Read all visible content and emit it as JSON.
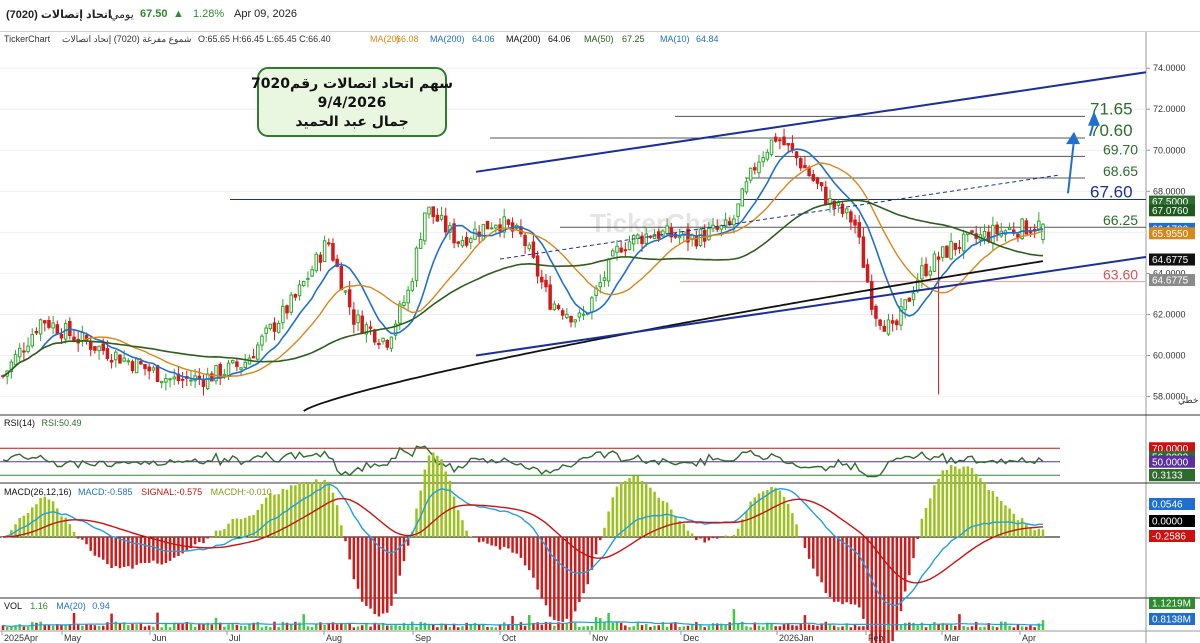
{
  "header": {
    "stock": "اتحاد إتصالات (7020)",
    "period": "يومي",
    "last": "67.50",
    "up_arrow": "▲",
    "change": "1.28%",
    "date": "Apr 09, 2026"
  },
  "legend_line": {
    "brand": "TickerChart",
    "name": "شموع مفرغة (7020) إتحاد اتصالات",
    "ohlc": "O:65.65  H:66.45  L:65.45  C:66.40",
    "ma20_label": "MA(20)",
    "ma20_val": "66.08",
    "ma200a_label": "MA(200)",
    "ma200a_val": "64.06",
    "ma200b_label": "MA(200)",
    "ma200b_val": "64.06",
    "ma50_label": "MA(50)",
    "ma50_val": "67.25",
    "ma10_label": "MA(10)",
    "ma10_val": "64.84"
  },
  "annotation_box": {
    "line1": "سهم اتحاد اتصالات رقم7020",
    "line2": "9/4/2026",
    "line3": "جمال عبد الحميد"
  },
  "watermark": "TickerChart",
  "level_labels": [
    "71.65",
    "70.60",
    "69.70",
    "68.65",
    "67.60",
    "66.25",
    "63.60"
  ],
  "price_axis": {
    "ticks": [
      "74.0000",
      "72.0000",
      "70.0000",
      "68.0000",
      "64.0000",
      "62.0000",
      "60.0000",
      "58.0000"
    ],
    "boxes": [
      {
        "text": "67.5000",
        "color": "#2e6b2e"
      },
      {
        "text": "67.0760",
        "color": "#1e5a1e"
      },
      {
        "text": "66.1700",
        "color": "#1f6fd1"
      },
      {
        "text": "65.9550",
        "color": "#d9861a"
      },
      {
        "text": "64.6775",
        "color": "#111111"
      },
      {
        "text": "64.6775",
        "color": "#8a8a8a"
      }
    ],
    "hidden_label": "خطي"
  },
  "rsi": {
    "label": "RSI(14)",
    "value": "RSI:50.49",
    "boxes": [
      {
        "text": "70.0000",
        "color": "#cc1111"
      },
      {
        "text": "56.8082",
        "color": "#2e6b2e"
      },
      {
        "text": "50.0000",
        "color": "#5b2fa0"
      },
      {
        "text": "30.0000",
        "color": "#2e8b2e"
      }
    ]
  },
  "macd": {
    "label": "MACD(26,12,16)",
    "macd_val": "MACD:-0.585",
    "signal_val": "SIGNAL:-0.575",
    "macdh_val": "MACDH:-0.010",
    "boxes": [
      {
        "text": "0.3133",
        "color": "#2e6b2e"
      },
      {
        "text": "0.0546",
        "color": "#1f6fd1"
      },
      {
        "text": "0.0000",
        "color": "#000000"
      },
      {
        "text": "-0.2586",
        "color": "#cc1111"
      }
    ]
  },
  "vol": {
    "label": "VOL",
    "vol_val": "1.16",
    "ma_label": "MA(20)",
    "ma_val": "0.94",
    "boxes": [
      {
        "text": "1.1219M",
        "color": "#2e8b2e"
      },
      {
        "text": "0.8138M",
        "color": "#1f6fd1"
      }
    ]
  },
  "months": [
    "2025Apr",
    "May",
    "Jun",
    "Jul",
    "Aug",
    "Sep",
    "Oct",
    "Nov",
    "Dec",
    "2026Jan",
    "Feb",
    "Mar",
    "Apr"
  ],
  "colors": {
    "up_candle": "#2ea82e",
    "down_candle": "#d11a1a",
    "ma10": "#1f6fd1",
    "ma20": "#d9861a",
    "ma50": "#2e5e1e",
    "ma200": "#111111",
    "channel": "#1a2f9a"
  },
  "chart_data": {
    "type": "candlestick",
    "symbol": "7020",
    "x": [
      "2025Apr",
      "May",
      "Jun",
      "Jul",
      "Aug",
      "Sep",
      "Oct",
      "Nov",
      "Dec",
      "2026Jan",
      "Feb",
      "Mar",
      "Apr"
    ],
    "close_approx": [
      59.0,
      61.5,
      59.0,
      58.8,
      62.5,
      63.2,
      66.3,
      62.2,
      66.5,
      69.5,
      67.5,
      64.5,
      66.4
    ],
    "last_ohlc": {
      "open": 65.65,
      "high": 66.45,
      "low": 65.45,
      "close": 66.4
    },
    "ylim": [
      57.2,
      74.3
    ],
    "support_resistance": [
      71.65,
      70.6,
      69.7,
      68.65,
      67.6,
      66.25,
      63.6
    ],
    "moving_averages": {
      "MA10": 64.84,
      "MA20": 66.08,
      "MA50": 67.25,
      "MA200": 64.06
    },
    "rsi": {
      "value": 50.49,
      "levels": [
        70,
        50,
        30
      ]
    },
    "macd": {
      "macd": -0.585,
      "signal": -0.575,
      "hist": -0.01
    },
    "volume": {
      "last": 1.16,
      "ma20": 0.94
    }
  }
}
